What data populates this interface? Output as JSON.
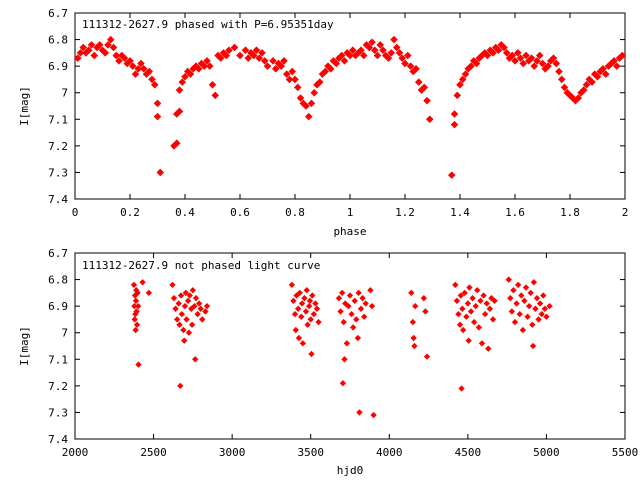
{
  "colors": {
    "points": "#ff0000",
    "axis": "#000000",
    "background": "#ffffff"
  },
  "chart_data": [
    {
      "type": "scatter",
      "title": "111312-2627.9 phased with P=6.95351day",
      "xlabel": "phase",
      "ylabel": "I[mag]",
      "xlim": [
        0,
        2
      ],
      "ylim": [
        6.7,
        7.4
      ],
      "y_inverted": true,
      "grid": false,
      "xticks": [
        "0",
        "0.2",
        "0.4",
        "0.6",
        "0.8",
        "1",
        "1.2",
        "1.4",
        "1.6",
        "1.8",
        "2"
      ],
      "yticks": [
        "6.7",
        "6.8",
        "6.9",
        "7",
        "7.1",
        "7.2",
        "7.3",
        "7.4"
      ],
      "points": [
        [
          0.01,
          6.87
        ],
        [
          0.02,
          6.85
        ],
        [
          0.03,
          6.83
        ],
        [
          0.04,
          6.85
        ],
        [
          0.05,
          6.84
        ],
        [
          0.06,
          6.82
        ],
        [
          0.07,
          6.86
        ],
        [
          0.08,
          6.83
        ],
        [
          0.09,
          6.82
        ],
        [
          0.1,
          6.84
        ],
        [
          0.11,
          6.85
        ],
        [
          0.12,
          6.82
        ],
        [
          0.13,
          6.8
        ],
        [
          0.14,
          6.83
        ],
        [
          0.15,
          6.86
        ],
        [
          0.16,
          6.88
        ],
        [
          0.17,
          6.86
        ],
        [
          0.18,
          6.87
        ],
        [
          0.19,
          6.89
        ],
        [
          0.2,
          6.88
        ],
        [
          0.21,
          6.9
        ],
        [
          0.22,
          6.93
        ],
        [
          0.23,
          6.91
        ],
        [
          0.24,
          6.89
        ],
        [
          0.25,
          6.91
        ],
        [
          0.26,
          6.93
        ],
        [
          0.27,
          6.92
        ],
        [
          0.28,
          6.95
        ],
        [
          0.29,
          6.97
        ],
        [
          0.3,
          7.04
        ],
        [
          0.3,
          7.09
        ],
        [
          0.31,
          7.3
        ],
        [
          0.36,
          7.2
        ],
        [
          0.37,
          7.19
        ],
        [
          0.37,
          7.08
        ],
        [
          0.38,
          7.07
        ],
        [
          0.38,
          6.99
        ],
        [
          0.39,
          6.96
        ],
        [
          0.4,
          6.94
        ],
        [
          0.41,
          6.92
        ],
        [
          0.42,
          6.93
        ],
        [
          0.43,
          6.91
        ],
        [
          0.44,
          6.9
        ],
        [
          0.45,
          6.91
        ],
        [
          0.46,
          6.89
        ],
        [
          0.47,
          6.9
        ],
        [
          0.48,
          6.88
        ],
        [
          0.49,
          6.9
        ],
        [
          0.5,
          6.97
        ],
        [
          0.51,
          7.01
        ],
        [
          0.52,
          6.86
        ],
        [
          0.53,
          6.87
        ],
        [
          0.54,
          6.85
        ],
        [
          0.55,
          6.86
        ],
        [
          0.56,
          6.84
        ],
        [
          0.58,
          6.83
        ],
        [
          0.6,
          6.86
        ],
        [
          0.62,
          6.84
        ],
        [
          0.63,
          6.87
        ],
        [
          0.64,
          6.85
        ],
        [
          0.65,
          6.86
        ],
        [
          0.66,
          6.84
        ],
        [
          0.67,
          6.87
        ],
        [
          0.68,
          6.85
        ],
        [
          0.69,
          6.88
        ],
        [
          0.7,
          6.9
        ],
        [
          0.72,
          6.88
        ],
        [
          0.73,
          6.91
        ],
        [
          0.74,
          6.89
        ],
        [
          0.75,
          6.9
        ],
        [
          0.76,
          6.88
        ],
        [
          0.77,
          6.93
        ],
        [
          0.78,
          6.95
        ],
        [
          0.79,
          6.92
        ],
        [
          0.8,
          6.95
        ],
        [
          0.81,
          6.98
        ],
        [
          0.82,
          7.02
        ],
        [
          0.83,
          7.04
        ],
        [
          0.84,
          7.05
        ],
        [
          0.85,
          7.09
        ],
        [
          0.86,
          7.04
        ],
        [
          0.87,
          7.0
        ],
        [
          0.88,
          6.97
        ],
        [
          0.89,
          6.96
        ],
        [
          0.9,
          6.93
        ],
        [
          0.91,
          6.92
        ],
        [
          0.92,
          6.9
        ],
        [
          0.93,
          6.91
        ],
        [
          0.94,
          6.88
        ],
        [
          0.95,
          6.89
        ],
        [
          0.96,
          6.87
        ],
        [
          0.97,
          6.86
        ],
        [
          0.98,
          6.88
        ],
        [
          0.99,
          6.85
        ],
        [
          1.0,
          6.86
        ],
        [
          1.01,
          6.84
        ],
        [
          1.02,
          6.86
        ],
        [
          1.03,
          6.85
        ],
        [
          1.04,
          6.84
        ],
        [
          1.05,
          6.86
        ],
        [
          1.06,
          6.82
        ],
        [
          1.07,
          6.83
        ],
        [
          1.08,
          6.81
        ],
        [
          1.09,
          6.84
        ],
        [
          1.1,
          6.86
        ],
        [
          1.11,
          6.82
        ],
        [
          1.12,
          6.84
        ],
        [
          1.13,
          6.86
        ],
        [
          1.14,
          6.87
        ],
        [
          1.15,
          6.85
        ],
        [
          1.16,
          6.8
        ],
        [
          1.17,
          6.83
        ],
        [
          1.18,
          6.85
        ],
        [
          1.19,
          6.87
        ],
        [
          1.2,
          6.89
        ],
        [
          1.21,
          6.86
        ],
        [
          1.22,
          6.9
        ],
        [
          1.23,
          6.92
        ],
        [
          1.24,
          6.91
        ],
        [
          1.25,
          6.96
        ],
        [
          1.26,
          6.99
        ],
        [
          1.27,
          6.98
        ],
        [
          1.28,
          7.03
        ],
        [
          1.29,
          7.1
        ],
        [
          1.37,
          7.31
        ],
        [
          1.38,
          7.12
        ],
        [
          1.38,
          7.08
        ],
        [
          1.39,
          7.01
        ],
        [
          1.4,
          6.97
        ],
        [
          1.41,
          6.95
        ],
        [
          1.42,
          6.93
        ],
        [
          1.43,
          6.91
        ],
        [
          1.44,
          6.9
        ],
        [
          1.45,
          6.88
        ],
        [
          1.46,
          6.89
        ],
        [
          1.47,
          6.87
        ],
        [
          1.48,
          6.86
        ],
        [
          1.49,
          6.85
        ],
        [
          1.5,
          6.86
        ],
        [
          1.51,
          6.84
        ],
        [
          1.52,
          6.85
        ],
        [
          1.53,
          6.83
        ],
        [
          1.54,
          6.84
        ],
        [
          1.55,
          6.82
        ],
        [
          1.56,
          6.83
        ],
        [
          1.57,
          6.85
        ],
        [
          1.58,
          6.87
        ],
        [
          1.59,
          6.86
        ],
        [
          1.6,
          6.88
        ],
        [
          1.61,
          6.85
        ],
        [
          1.62,
          6.87
        ],
        [
          1.63,
          6.89
        ],
        [
          1.64,
          6.86
        ],
        [
          1.65,
          6.88
        ],
        [
          1.66,
          6.87
        ],
        [
          1.67,
          6.9
        ],
        [
          1.68,
          6.88
        ],
        [
          1.69,
          6.86
        ],
        [
          1.7,
          6.89
        ],
        [
          1.71,
          6.91
        ],
        [
          1.72,
          6.9
        ],
        [
          1.73,
          6.88
        ],
        [
          1.74,
          6.87
        ],
        [
          1.75,
          6.89
        ],
        [
          1.76,
          6.92
        ],
        [
          1.77,
          6.95
        ],
        [
          1.78,
          6.98
        ],
        [
          1.79,
          7.0
        ],
        [
          1.8,
          7.01
        ],
        [
          1.81,
          7.02
        ],
        [
          1.82,
          7.03
        ],
        [
          1.83,
          7.02
        ],
        [
          1.84,
          7.0
        ],
        [
          1.85,
          6.99
        ],
        [
          1.86,
          6.97
        ],
        [
          1.87,
          6.95
        ],
        [
          1.88,
          6.96
        ],
        [
          1.89,
          6.93
        ],
        [
          1.9,
          6.94
        ],
        [
          1.91,
          6.92
        ],
        [
          1.92,
          6.91
        ],
        [
          1.93,
          6.93
        ],
        [
          1.94,
          6.9
        ],
        [
          1.95,
          6.89
        ],
        [
          1.96,
          6.88
        ],
        [
          1.97,
          6.9
        ],
        [
          1.98,
          6.87
        ],
        [
          1.99,
          6.86
        ]
      ]
    },
    {
      "type": "scatter",
      "title": "111312-2627.9 not phased light curve",
      "xlabel": "hjd0",
      "ylabel": "I[mag]",
      "xlim": [
        2000,
        5500
      ],
      "ylim": [
        6.7,
        7.4
      ],
      "y_inverted": true,
      "grid": false,
      "xticks": [
        "2000",
        "2500",
        "3000",
        "3500",
        "4000",
        "4500",
        "5000",
        "5500"
      ],
      "yticks": [
        "6.7",
        "6.8",
        "6.9",
        "7",
        "7.1",
        "7.2",
        "7.3",
        "7.4"
      ],
      "points": [
        [
          2375,
          6.82
        ],
        [
          2378,
          6.9
        ],
        [
          2380,
          6.95
        ],
        [
          2382,
          6.86
        ],
        [
          2384,
          6.93
        ],
        [
          2386,
          6.99
        ],
        [
          2388,
          6.88
        ],
        [
          2390,
          6.84
        ],
        [
          2392,
          6.92
        ],
        [
          2395,
          6.97
        ],
        [
          2398,
          6.85
        ],
        [
          2402,
          6.9
        ],
        [
          2404,
          7.12
        ],
        [
          2430,
          6.81
        ],
        [
          2470,
          6.85
        ],
        [
          2620,
          6.82
        ],
        [
          2630,
          6.87
        ],
        [
          2640,
          6.91
        ],
        [
          2650,
          6.95
        ],
        [
          2660,
          6.89
        ],
        [
          2665,
          6.97
        ],
        [
          2670,
          7.2
        ],
        [
          2675,
          6.86
        ],
        [
          2680,
          6.93
        ],
        [
          2690,
          6.99
        ],
        [
          2695,
          7.03
        ],
        [
          2700,
          6.9
        ],
        [
          2705,
          6.85
        ],
        [
          2710,
          6.95
        ],
        [
          2720,
          6.88
        ],
        [
          2725,
          7.0
        ],
        [
          2730,
          6.86
        ],
        [
          2740,
          6.91
        ],
        [
          2745,
          6.97
        ],
        [
          2750,
          6.84
        ],
        [
          2760,
          6.9
        ],
        [
          2765,
          7.1
        ],
        [
          2770,
          6.87
        ],
        [
          2780,
          6.93
        ],
        [
          2790,
          6.89
        ],
        [
          2800,
          6.91
        ],
        [
          2810,
          6.95
        ],
        [
          2830,
          6.92
        ],
        [
          2840,
          6.9
        ],
        [
          3380,
          6.82
        ],
        [
          3390,
          6.88
        ],
        [
          3400,
          6.93
        ],
        [
          3405,
          6.99
        ],
        [
          3410,
          6.86
        ],
        [
          3420,
          6.91
        ],
        [
          3425,
          7.02
        ],
        [
          3430,
          6.85
        ],
        [
          3440,
          6.94
        ],
        [
          3445,
          6.89
        ],
        [
          3450,
          7.04
        ],
        [
          3460,
          6.87
        ],
        [
          3470,
          6.92
        ],
        [
          3475,
          6.84
        ],
        [
          3480,
          6.97
        ],
        [
          3490,
          6.9
        ],
        [
          3495,
          6.88
        ],
        [
          3500,
          6.95
        ],
        [
          3505,
          7.08
        ],
        [
          3510,
          6.86
        ],
        [
          3520,
          6.93
        ],
        [
          3530,
          6.89
        ],
        [
          3540,
          6.91
        ],
        [
          3550,
          6.96
        ],
        [
          3680,
          6.87
        ],
        [
          3690,
          6.92
        ],
        [
          3700,
          6.85
        ],
        [
          3705,
          7.19
        ],
        [
          3710,
          6.96
        ],
        [
          3715,
          7.1
        ],
        [
          3720,
          6.89
        ],
        [
          3730,
          7.04
        ],
        [
          3740,
          6.9
        ],
        [
          3750,
          6.86
        ],
        [
          3760,
          6.93
        ],
        [
          3770,
          6.98
        ],
        [
          3780,
          6.88
        ],
        [
          3790,
          6.95
        ],
        [
          3800,
          7.02
        ],
        [
          3805,
          6.85
        ],
        [
          3810,
          7.3
        ],
        [
          3820,
          6.91
        ],
        [
          3830,
          6.87
        ],
        [
          3840,
          6.94
        ],
        [
          3850,
          6.89
        ],
        [
          3880,
          6.84
        ],
        [
          3890,
          6.9
        ],
        [
          3900,
          7.31
        ],
        [
          4140,
          6.85
        ],
        [
          4150,
          6.96
        ],
        [
          4155,
          7.02
        ],
        [
          4160,
          7.05
        ],
        [
          4165,
          6.9
        ],
        [
          4220,
          6.87
        ],
        [
          4230,
          6.92
        ],
        [
          4240,
          7.09
        ],
        [
          4420,
          6.82
        ],
        [
          4430,
          6.88
        ],
        [
          4440,
          6.93
        ],
        [
          4450,
          6.97
        ],
        [
          4455,
          6.86
        ],
        [
          4460,
          7.21
        ],
        [
          4465,
          6.91
        ],
        [
          4470,
          6.99
        ],
        [
          4480,
          6.85
        ],
        [
          4490,
          6.94
        ],
        [
          4500,
          6.89
        ],
        [
          4505,
          7.03
        ],
        [
          4510,
          6.83
        ],
        [
          4520,
          6.92
        ],
        [
          4530,
          6.87
        ],
        [
          4540,
          6.96
        ],
        [
          4550,
          6.9
        ],
        [
          4560,
          6.84
        ],
        [
          4570,
          6.98
        ],
        [
          4580,
          6.88
        ],
        [
          4590,
          7.04
        ],
        [
          4600,
          6.86
        ],
        [
          4610,
          6.93
        ],
        [
          4620,
          6.89
        ],
        [
          4630,
          7.06
        ],
        [
          4640,
          6.91
        ],
        [
          4650,
          6.87
        ],
        [
          4660,
          6.95
        ],
        [
          4670,
          6.88
        ],
        [
          4760,
          6.8
        ],
        [
          4770,
          6.87
        ],
        [
          4780,
          6.92
        ],
        [
          4790,
          6.84
        ],
        [
          4800,
          6.96
        ],
        [
          4810,
          6.89
        ],
        [
          4820,
          6.82
        ],
        [
          4830,
          6.93
        ],
        [
          4840,
          6.86
        ],
        [
          4850,
          6.99
        ],
        [
          4860,
          6.88
        ],
        [
          4870,
          6.83
        ],
        [
          4880,
          6.94
        ],
        [
          4890,
          6.9
        ],
        [
          4900,
          6.85
        ],
        [
          4910,
          6.97
        ],
        [
          4915,
          7.05
        ],
        [
          4920,
          6.81
        ],
        [
          4930,
          6.91
        ],
        [
          4940,
          6.87
        ],
        [
          4950,
          6.95
        ],
        [
          4960,
          6.89
        ],
        [
          4970,
          6.93
        ],
        [
          4980,
          6.86
        ],
        [
          4990,
          6.91
        ],
        [
          5000,
          6.94
        ],
        [
          5020,
          6.9
        ]
      ]
    }
  ]
}
